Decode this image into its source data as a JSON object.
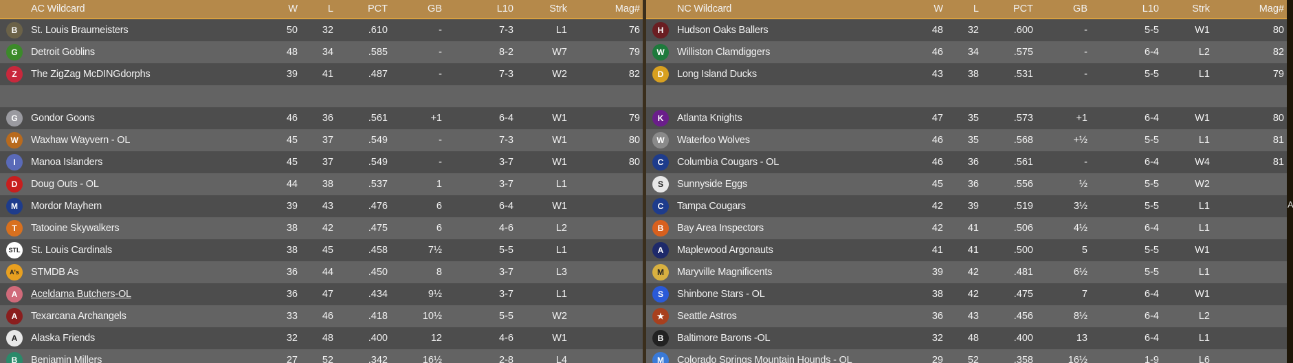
{
  "columns": {
    "w": "W",
    "l": "L",
    "pct": "PCT",
    "gb": "GB",
    "l10": "L10",
    "strk": "Strk",
    "mag": "Mag#"
  },
  "edge_text": "A",
  "ac": {
    "title": "AC  Wildcard",
    "rows": [
      {
        "team": "St. Louis Braumeisters",
        "w": "50",
        "l": "32",
        "pct": ".610",
        "gb": "-",
        "l10": "7-3",
        "strk": "L1",
        "mag": "76",
        "logo": "B",
        "logo_color": "#6b6248"
      },
      {
        "team": "Detroit Goblins",
        "w": "48",
        "l": "34",
        "pct": ".585",
        "gb": "-",
        "l10": "8-2",
        "strk": "W7",
        "mag": "79",
        "logo": "G",
        "logo_color": "#3c8a2a"
      },
      {
        "team": "The ZigZag McDINGdorphs",
        "w": "39",
        "l": "41",
        "pct": ".487",
        "gb": "-",
        "l10": "7-3",
        "strk": "W2",
        "mag": "82",
        "logo": "Z",
        "logo_color": "#c8283c"
      },
      {
        "blank": true
      },
      {
        "team": "Gondor Goons",
        "w": "46",
        "l": "36",
        "pct": ".561",
        "gb": "+1",
        "l10": "6-4",
        "strk": "W1",
        "mag": "79",
        "logo": "G",
        "logo_color": "#9a9aa0"
      },
      {
        "team": "Waxhaw Wayvern - OL",
        "w": "45",
        "l": "37",
        "pct": ".549",
        "gb": "-",
        "l10": "7-3",
        "strk": "W1",
        "mag": "80",
        "logo": "W",
        "logo_color": "#b86a1e"
      },
      {
        "team": "Manoa Islanders",
        "w": "45",
        "l": "37",
        "pct": ".549",
        "gb": "-",
        "l10": "3-7",
        "strk": "W1",
        "mag": "80",
        "logo": "I",
        "logo_color": "#5a6ab8"
      },
      {
        "team": "Doug Outs - OL",
        "w": "44",
        "l": "38",
        "pct": ".537",
        "gb": "1",
        "l10": "3-7",
        "strk": "L1",
        "mag": "",
        "logo": "D",
        "logo_color": "#c81e1e"
      },
      {
        "team": "Mordor Mayhem",
        "w": "39",
        "l": "43",
        "pct": ".476",
        "gb": "6",
        "l10": "6-4",
        "strk": "W1",
        "mag": "",
        "logo": "M",
        "logo_color": "#1e3c8c"
      },
      {
        "team": "Tatooine Skywalkers",
        "w": "38",
        "l": "42",
        "pct": ".475",
        "gb": "6",
        "l10": "4-6",
        "strk": "L2",
        "mag": "",
        "logo": "T",
        "logo_color": "#d8701e"
      },
      {
        "team": "St. Louis Cardinals",
        "w": "38",
        "l": "45",
        "pct": ".458",
        "gb": "7½",
        "l10": "5-5",
        "strk": "L1",
        "mag": "",
        "logo": "STL",
        "logo_color": "#ffffff"
      },
      {
        "team": "STMDB As",
        "w": "36",
        "l": "44",
        "pct": ".450",
        "gb": "8",
        "l10": "3-7",
        "strk": "L3",
        "mag": "",
        "logo": "A's",
        "logo_color": "#e8a020"
      },
      {
        "team": "Aceldama Butchers-OL",
        "w": "36",
        "l": "47",
        "pct": ".434",
        "gb": "9½",
        "l10": "3-7",
        "strk": "L1",
        "mag": "",
        "logo": "A",
        "logo_color": "#d06a7a",
        "underline": true
      },
      {
        "team": "Texarcana Archangels",
        "w": "33",
        "l": "46",
        "pct": ".418",
        "gb": "10½",
        "l10": "5-5",
        "strk": "W2",
        "mag": "",
        "logo": "A",
        "logo_color": "#8a1e1e"
      },
      {
        "team": "Alaska Friends",
        "w": "32",
        "l": "48",
        "pct": ".400",
        "gb": "12",
        "l10": "4-6",
        "strk": "W1",
        "mag": "",
        "logo": "A",
        "logo_color": "#e8e8e8"
      },
      {
        "team": "Benjamin Millers",
        "w": "27",
        "l": "52",
        "pct": ".342",
        "gb": "16½",
        "l10": "2-8",
        "strk": "L4",
        "mag": "",
        "logo": "B",
        "logo_color": "#2a8a6a"
      }
    ]
  },
  "nc": {
    "title": "NC  Wildcard",
    "rows": [
      {
        "team": "Hudson Oaks Ballers",
        "w": "48",
        "l": "32",
        "pct": ".600",
        "gb": "-",
        "l10": "5-5",
        "strk": "W1",
        "mag": "80",
        "logo": "H",
        "logo_color": "#6a1e22"
      },
      {
        "team": "Williston Clamdiggers",
        "w": "46",
        "l": "34",
        "pct": ".575",
        "gb": "-",
        "l10": "6-4",
        "strk": "L2",
        "mag": "82",
        "logo": "W",
        "logo_color": "#1e7a3c"
      },
      {
        "team": "Long Island Ducks",
        "w": "43",
        "l": "38",
        "pct": ".531",
        "gb": "-",
        "l10": "5-5",
        "strk": "L1",
        "mag": "79",
        "logo": "D",
        "logo_color": "#d8a020"
      },
      {
        "blank": true
      },
      {
        "team": "Atlanta Knights",
        "w": "47",
        "l": "35",
        "pct": ".573",
        "gb": "+1",
        "l10": "6-4",
        "strk": "W1",
        "mag": "80",
        "logo": "K",
        "logo_color": "#6a1e8a"
      },
      {
        "team": "Waterloo Wolves",
        "w": "46",
        "l": "35",
        "pct": ".568",
        "gb": "+½",
        "l10": "5-5",
        "strk": "L1",
        "mag": "81",
        "logo": "W",
        "logo_color": "#8a8a8a"
      },
      {
        "team": "Columbia Cougars - OL",
        "w": "46",
        "l": "36",
        "pct": ".561",
        "gb": "-",
        "l10": "6-4",
        "strk": "W4",
        "mag": "81",
        "logo": "C",
        "logo_color": "#1e3c8c"
      },
      {
        "team": "Sunnyside Eggs",
        "w": "45",
        "l": "36",
        "pct": ".556",
        "gb": "½",
        "l10": "5-5",
        "strk": "W2",
        "mag": "",
        "logo": "S",
        "logo_color": "#e8e8e8"
      },
      {
        "team": "Tampa Cougars",
        "w": "42",
        "l": "39",
        "pct": ".519",
        "gb": "3½",
        "l10": "5-5",
        "strk": "L1",
        "mag": "",
        "logo": "C",
        "logo_color": "#1e3c8c"
      },
      {
        "team": "Bay Area Inspectors",
        "w": "42",
        "l": "41",
        "pct": ".506",
        "gb": "4½",
        "l10": "6-4",
        "strk": "L1",
        "mag": "",
        "logo": "B",
        "logo_color": "#d8601e"
      },
      {
        "team": "Maplewood Argonauts",
        "w": "41",
        "l": "41",
        "pct": ".500",
        "gb": "5",
        "l10": "5-5",
        "strk": "W1",
        "mag": "",
        "logo": "A",
        "logo_color": "#1e2a6a"
      },
      {
        "team": "Maryville Magnificents",
        "w": "39",
        "l": "42",
        "pct": ".481",
        "gb": "6½",
        "l10": "5-5",
        "strk": "L1",
        "mag": "",
        "logo": "M",
        "logo_color": "#d8b040"
      },
      {
        "team": "Shinbone Stars - OL",
        "w": "38",
        "l": "42",
        "pct": ".475",
        "gb": "7",
        "l10": "6-4",
        "strk": "W1",
        "mag": "",
        "logo": "S",
        "logo_color": "#2a5ad8"
      },
      {
        "team": "Seattle Astros",
        "w": "36",
        "l": "43",
        "pct": ".456",
        "gb": "8½",
        "l10": "6-4",
        "strk": "L2",
        "mag": "",
        "logo": "★",
        "logo_color": "#a8401e"
      },
      {
        "team": "Baltimore Barons -OL",
        "w": "32",
        "l": "48",
        "pct": ".400",
        "gb": "13",
        "l10": "6-4",
        "strk": "L1",
        "mag": "",
        "logo": "B",
        "logo_color": "#222222"
      },
      {
        "team": "Colorado Springs Mountain Hounds - OL",
        "w": "29",
        "l": "52",
        "pct": ".358",
        "gb": "16½",
        "l10": "1-9",
        "strk": "L6",
        "mag": "",
        "logo": "M",
        "logo_color": "#3a7ad8"
      }
    ]
  }
}
